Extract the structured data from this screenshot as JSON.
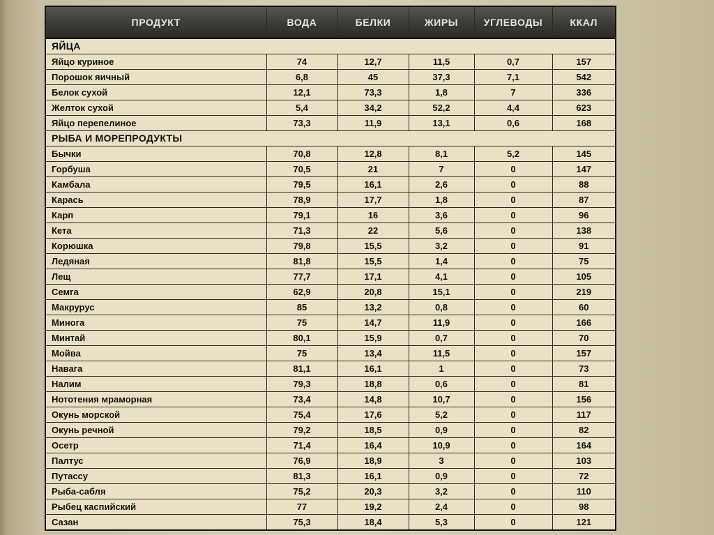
{
  "table": {
    "columns": [
      "ПРОДУКТ",
      "ВОДА",
      "БЕЛКИ",
      "ЖИРЫ",
      "УГЛЕВОДЫ",
      "ККАЛ"
    ],
    "sections": [
      {
        "title": "ЯЙЦА",
        "rows": [
          [
            "Яйцо куриное",
            "74",
            "12,7",
            "11,5",
            "0,7",
            "157"
          ],
          [
            "Порошок яичный",
            "6,8",
            "45",
            "37,3",
            "7,1",
            "542"
          ],
          [
            "Белок сухой",
            "12,1",
            "73,3",
            "1,8",
            "7",
            "336"
          ],
          [
            "Желток сухой",
            "5,4",
            "34,2",
            "52,2",
            "4,4",
            "623"
          ],
          [
            "Яйцо перепелиное",
            "73,3",
            "11,9",
            "13,1",
            "0,6",
            "168"
          ]
        ]
      },
      {
        "title": "РЫБА И МОРЕПРОДУКТЫ",
        "rows": [
          [
            "Бычки",
            "70,8",
            "12,8",
            "8,1",
            "5,2",
            "145"
          ],
          [
            "Горбуша",
            "70,5",
            "21",
            "7",
            "0",
            "147"
          ],
          [
            "Камбала",
            "79,5",
            "16,1",
            "2,6",
            "0",
            "88"
          ],
          [
            "Карась",
            "78,9",
            "17,7",
            "1,8",
            "0",
            "87"
          ],
          [
            "Карп",
            "79,1",
            "16",
            "3,6",
            "0",
            "96"
          ],
          [
            "Кета",
            "71,3",
            "22",
            "5,6",
            "0",
            "138"
          ],
          [
            "Корюшка",
            "79,8",
            "15,5",
            "3,2",
            "0",
            "91"
          ],
          [
            "Ледяная",
            "81,8",
            "15,5",
            "1,4",
            "0",
            "75"
          ],
          [
            "Лещ",
            "77,7",
            "17,1",
            "4,1",
            "0",
            "105"
          ],
          [
            "Семга",
            "62,9",
            "20,8",
            "15,1",
            "0",
            "219"
          ],
          [
            "Макрурус",
            "85",
            "13,2",
            "0,8",
            "0",
            "60"
          ],
          [
            "Минога",
            "75",
            "14,7",
            "11,9",
            "0",
            "166"
          ],
          [
            "Минтай",
            "80,1",
            "15,9",
            "0,7",
            "0",
            "70"
          ],
          [
            "Мойва",
            "75",
            "13,4",
            "11,5",
            "0",
            "157"
          ],
          [
            "Навага",
            "81,1",
            "16,1",
            "1",
            "0",
            "73"
          ],
          [
            "Налим",
            "79,3",
            "18,8",
            "0,6",
            "0",
            "81"
          ],
          [
            "Нототения мраморная",
            "73,4",
            "14,8",
            "10,7",
            "0",
            "156"
          ],
          [
            "Окунь морской",
            "75,4",
            "17,6",
            "5,2",
            "0",
            "117"
          ],
          [
            "Окунь речной",
            "79,2",
            "18,5",
            "0,9",
            "0",
            "82"
          ],
          [
            "Осетр",
            "71,4",
            "16,4",
            "10,9",
            "0",
            "164"
          ],
          [
            "Палтус",
            "76,9",
            "18,9",
            "3",
            "0",
            "103"
          ],
          [
            "Путассу",
            "81,3",
            "16,1",
            "0,9",
            "0",
            "72"
          ],
          [
            "Рыба-сабля",
            "75,2",
            "20,3",
            "3,2",
            "0",
            "110"
          ],
          [
            "Рыбец каспийский",
            "77",
            "19,2",
            "2,4",
            "0",
            "98"
          ],
          [
            "Сазан",
            "75,3",
            "18,4",
            "5,3",
            "0",
            "121"
          ]
        ]
      }
    ]
  }
}
